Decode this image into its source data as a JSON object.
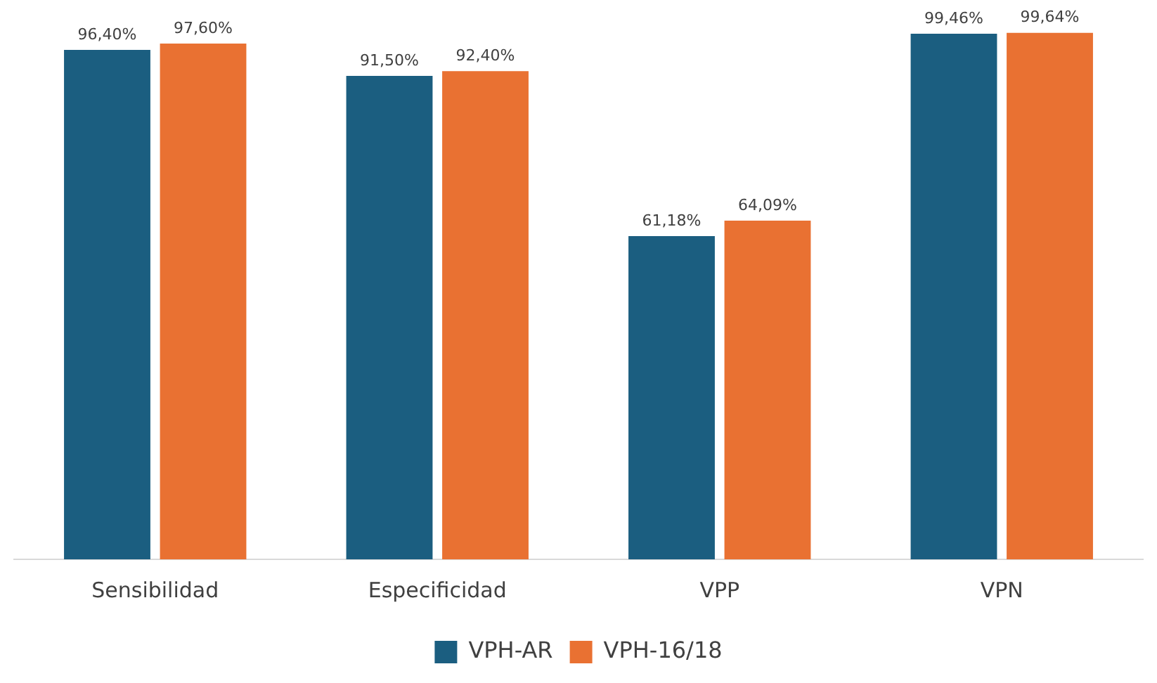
{
  "chart_data": {
    "type": "bar",
    "categories": [
      "Sensibilidad",
      "Especificidad",
      "VPP",
      "VPN"
    ],
    "series": [
      {
        "name": "VPH-AR",
        "color": "#1b5e80",
        "values": [
          96.4,
          91.5,
          61.18,
          99.46
        ],
        "value_labels": [
          "96,40%",
          "91,50%",
          "61,18%",
          "99,46%"
        ]
      },
      {
        "name": "VPH-16/18",
        "color": "#e97132",
        "values": [
          97.6,
          92.4,
          64.09,
          99.64
        ],
        "value_labels": [
          "97,60%",
          "92,40%",
          "64,09%",
          "99,64%"
        ]
      }
    ],
    "tick_labels": "x",
    "grid": false,
    "legend": "bottom"
  }
}
